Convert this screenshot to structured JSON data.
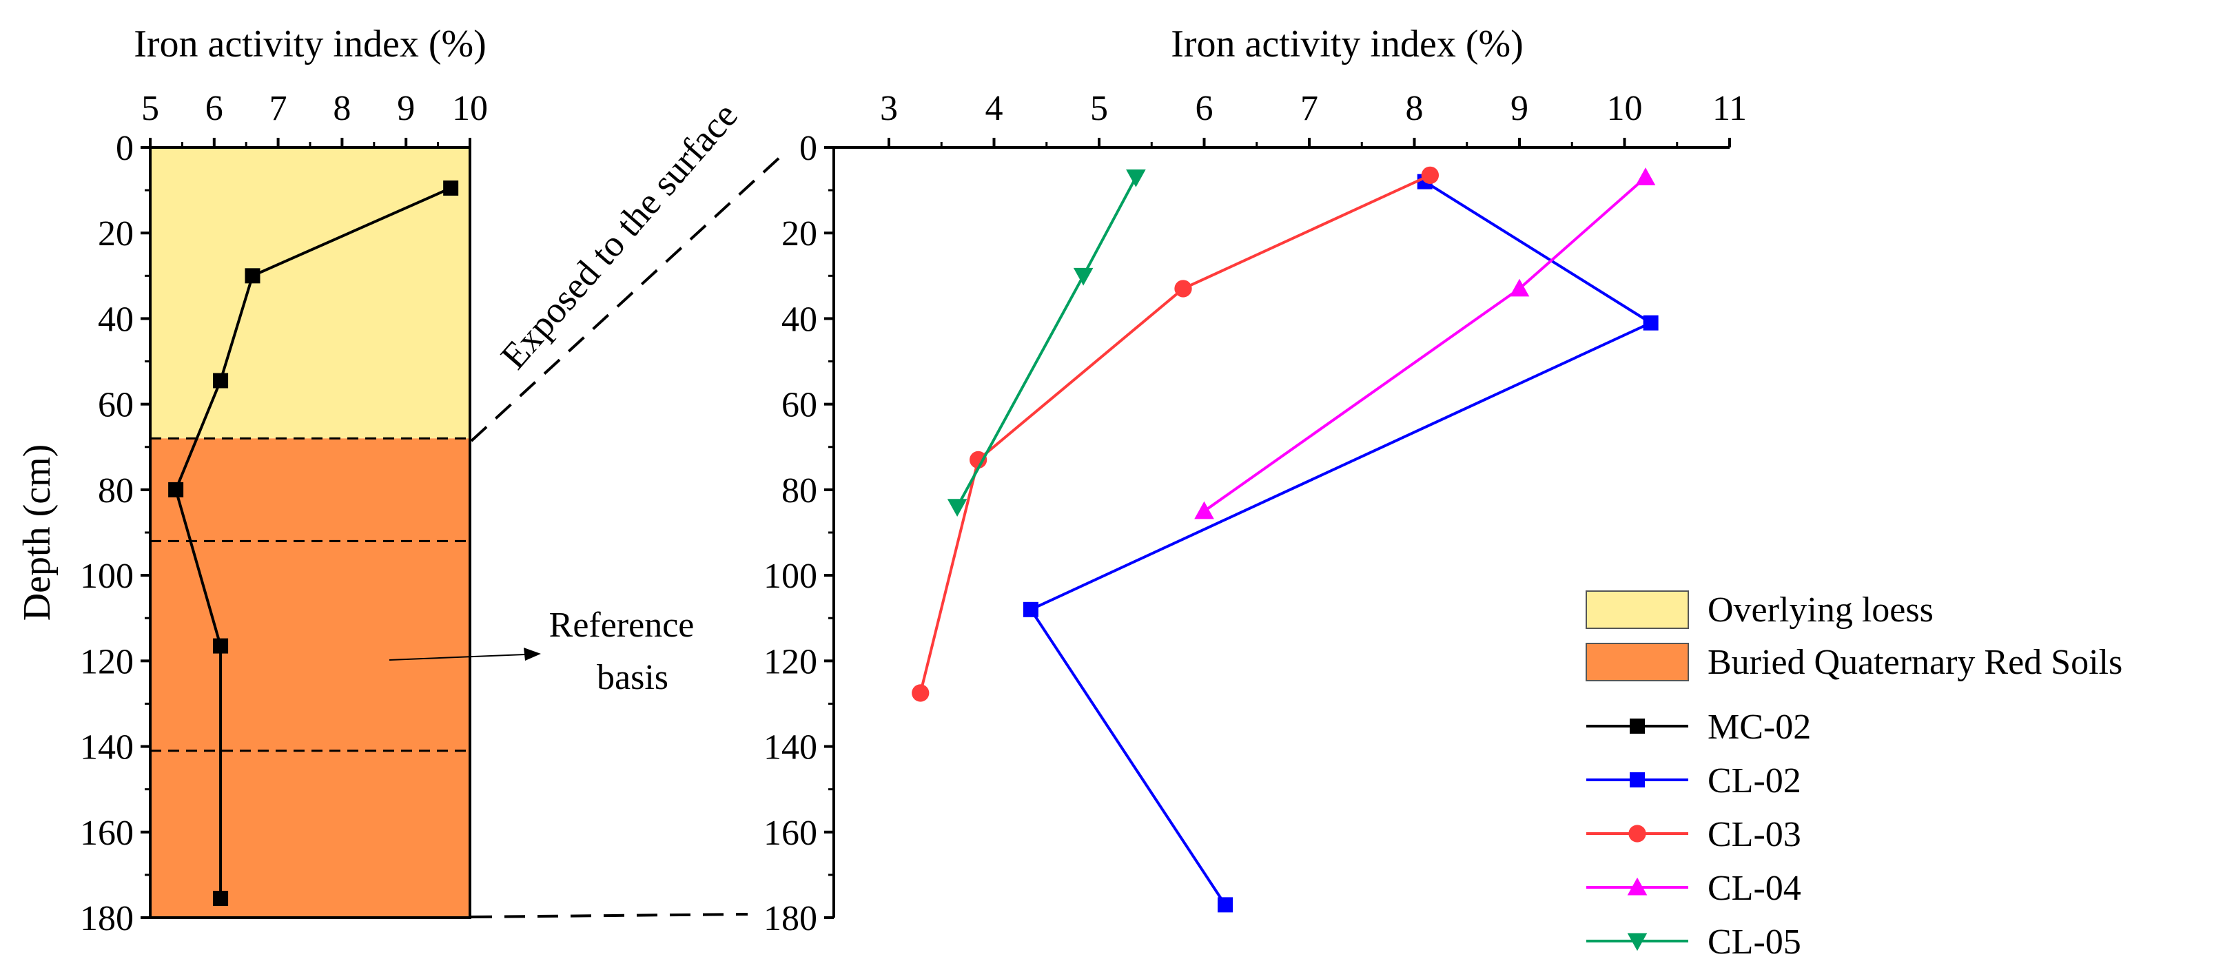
{
  "chart_data": [
    {
      "type": "line",
      "title": "",
      "xlabel": "Iron activity index (%)",
      "ylabel": "Depth (cm)",
      "xlim": [
        5,
        10
      ],
      "ylim": [
        0,
        180
      ],
      "x_ticks": [
        5,
        6,
        7,
        8,
        9,
        10
      ],
      "y_ticks": [
        0,
        20,
        40,
        60,
        80,
        100,
        120,
        140,
        160,
        180
      ],
      "bands": [
        {
          "name": "Overlying loess",
          "from": 0,
          "to": 68,
          "color": "#FFEE99"
        },
        {
          "name": "Buried Quaternary Red Soils",
          "from": 68,
          "to": 180,
          "color": "#FF8F47"
        }
      ],
      "dashed_lines": [
        68,
        92,
        141
      ],
      "series": [
        {
          "name": "MC-02",
          "color": "#000000",
          "marker": "square",
          "points": [
            [
              9.7,
              9.5
            ],
            [
              6.6,
              30
            ],
            [
              6.1,
              54.5
            ],
            [
              5.4,
              80
            ],
            [
              6.1,
              116.5
            ],
            [
              6.1,
              175.5
            ]
          ]
        }
      ],
      "annotations": {
        "reference": [
          "Reference",
          "basis"
        ],
        "exposed": "Exposed to the surface"
      }
    },
    {
      "type": "line",
      "title": "",
      "xlabel": "Iron activity index (%)",
      "ylabel": "",
      "xlim": [
        2.5,
        11
      ],
      "ylim": [
        0,
        180
      ],
      "x_ticks": [
        3,
        4,
        5,
        6,
        7,
        8,
        9,
        10,
        11
      ],
      "y_ticks": [
        0,
        20,
        40,
        60,
        80,
        100,
        120,
        140,
        160,
        180
      ],
      "series": [
        {
          "name": "CL-02",
          "color": "#0000FF",
          "marker": "square",
          "points": [
            [
              8.1,
              8
            ],
            [
              10.25,
              41
            ],
            [
              4.35,
              108
            ],
            [
              6.2,
              177
            ]
          ]
        },
        {
          "name": "CL-03",
          "color": "#FF3B3B",
          "marker": "circle",
          "points": [
            [
              8.15,
              6.5
            ],
            [
              5.8,
              33
            ],
            [
              3.85,
              73
            ],
            [
              3.3,
              127.5
            ]
          ]
        },
        {
          "name": "CL-04",
          "color": "#FF00FF",
          "marker": "triangle-up",
          "points": [
            [
              10.2,
              7
            ],
            [
              9.0,
              33
            ],
            [
              6.0,
              85
            ]
          ]
        },
        {
          "name": "CL-05",
          "color": "#00A060",
          "marker": "triangle-down",
          "points": [
            [
              5.35,
              7
            ],
            [
              4.85,
              30
            ],
            [
              3.65,
              84
            ]
          ]
        }
      ]
    }
  ],
  "legend": [
    {
      "label": "Overlying loess",
      "kind": "patch",
      "color": "#FFEE99"
    },
    {
      "label": "Buried Quaternary Red Soils",
      "kind": "patch",
      "color": "#FF8F47"
    },
    {
      "label": "MC-02",
      "kind": "line",
      "color": "#000000",
      "marker": "square"
    },
    {
      "label": "CL-02",
      "kind": "line",
      "color": "#0000FF",
      "marker": "square"
    },
    {
      "label": "CL-03",
      "kind": "line",
      "color": "#FF3B3B",
      "marker": "circle"
    },
    {
      "label": "CL-04",
      "kind": "line",
      "color": "#FF00FF",
      "marker": "triangle-up"
    },
    {
      "label": "CL-05",
      "kind": "line",
      "color": "#00A060",
      "marker": "triangle-down"
    }
  ]
}
